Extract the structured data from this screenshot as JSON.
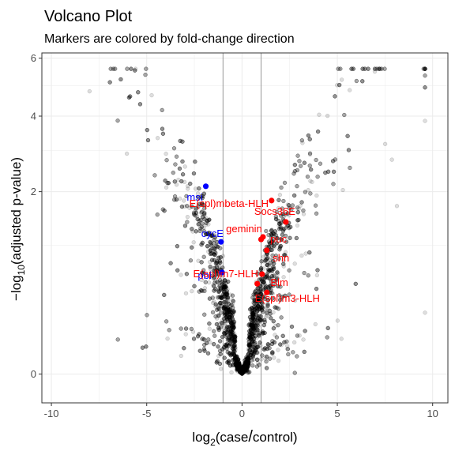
{
  "chart_data": {
    "type": "scatter",
    "title": "Volcano Plot",
    "subtitle": "Markers are colored by fold-change direction",
    "xlabel_parts": [
      "log",
      "2",
      "(case",
      "/",
      "control)"
    ],
    "ylabel_parts": [
      "−log",
      "10",
      "(adjusted p-value)"
    ],
    "xlim": [
      -10.5,
      10.8
    ],
    "ylim": [
      -0.05,
      6.2
    ],
    "x_ticks": [
      -10,
      -5,
      0,
      5,
      10
    ],
    "x_tick_labels": [
      "-10",
      "-5",
      "0",
      "5",
      "10"
    ],
    "y_ticks": [
      0,
      2,
      4,
      6
    ],
    "y_tick_labels": [
      "0",
      "2",
      "4",
      "6"
    ],
    "y_scale": "sqrt",
    "grid": true,
    "threshold_lines_x": [
      -1,
      1
    ],
    "colors": {
      "background_points": "#000000",
      "up": "#ff0000",
      "down": "#0000ff",
      "panel_border": "#333333",
      "grid": "#ebebeb",
      "threshold": "#7f7f7f"
    },
    "highlighted_genes": [
      {
        "name": "msi",
        "x": -1.9,
        "y": 2.12,
        "direction": "down"
      },
      {
        "name": "cycE",
        "x": -1.1,
        "y": 1.05,
        "direction": "down"
      },
      {
        "name": "pbl",
        "x": -1.05,
        "y": 0.62,
        "direction": "down"
      },
      {
        "name": "E(spl)mbeta-HLH",
        "x": 1.55,
        "y": 1.81,
        "direction": "up"
      },
      {
        "name": "Socs36E",
        "x": 2.3,
        "y": 1.39,
        "direction": "up"
      },
      {
        "name": "puc",
        "x": 1.0,
        "y": 1.09,
        "direction": "up"
      },
      {
        "name": "geminin",
        "x": 1.1,
        "y": 1.13,
        "direction": "up"
      },
      {
        "name": "shn",
        "x": 1.3,
        "y": 0.92,
        "direction": "up"
      },
      {
        "name": "E(spl)m7-HLH",
        "x": 1.05,
        "y": 0.6,
        "direction": "up"
      },
      {
        "name": "Blm",
        "x": 0.8,
        "y": 0.49,
        "direction": "up"
      },
      {
        "name": "E(spl)m3-HLH",
        "x": 1.3,
        "y": 0.4,
        "direction": "up"
      }
    ]
  }
}
